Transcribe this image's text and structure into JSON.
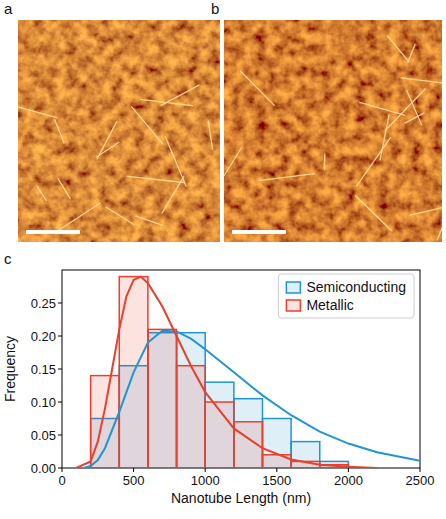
{
  "panel_labels": [
    "a",
    "b",
    "c"
  ],
  "chart_data": {
    "type": "histogram",
    "xlabel": "Nanotube Length (nm)",
    "ylabel": "Frequency",
    "bins": [
      200,
      400,
      600,
      800,
      1000,
      1200,
      1400,
      1600,
      1800,
      2000
    ],
    "xlim": [
      0,
      2500
    ],
    "xticks": [
      0,
      500,
      1000,
      1500,
      2000,
      2500
    ],
    "ylim": [
      0,
      0.3
    ],
    "yticks": [
      {
        "value": 0,
        "label": "0.00"
      },
      0.05,
      {
        "value": 0.1,
        "label": "0.10"
      },
      0.15,
      {
        "value": 0.2,
        "label": "0.20"
      },
      0.25
    ],
    "grid": false,
    "legend": "upper right",
    "series": [
      {
        "name": "Semiconducting",
        "color": "#1f95d2",
        "values": [
          0.075,
          0.155,
          0.205,
          0.205,
          0.13,
          0.105,
          0.075,
          0.04,
          0.01
        ],
        "fit_x": [
          150,
          200,
          250,
          300,
          400,
          500,
          600,
          700,
          800,
          900,
          1000,
          1200,
          1400,
          1600,
          1800,
          2000,
          2200,
          2500
        ],
        "fit_values": [
          0,
          0.003,
          0.012,
          0.03,
          0.085,
          0.145,
          0.19,
          0.208,
          0.207,
          0.196,
          0.18,
          0.145,
          0.11,
          0.08,
          0.055,
          0.037,
          0.024,
          0.011
        ]
      },
      {
        "name": "Metallic",
        "color": "#e8402c",
        "values": [
          0.14,
          0.29,
          0.21,
          0.155,
          0.1,
          0.07,
          0.02,
          0.01,
          0.005
        ],
        "fit_x": [
          100,
          200,
          250,
          300,
          350,
          400,
          450,
          500,
          550,
          600,
          700,
          800,
          900,
          1000,
          1200,
          1400,
          1600,
          1800,
          2000,
          2200
        ],
        "fit_values": [
          0,
          0.01,
          0.04,
          0.09,
          0.15,
          0.21,
          0.26,
          0.285,
          0.29,
          0.28,
          0.245,
          0.2,
          0.155,
          0.115,
          0.06,
          0.03,
          0.013,
          0.005,
          0.002,
          0
        ]
      }
    ]
  }
}
